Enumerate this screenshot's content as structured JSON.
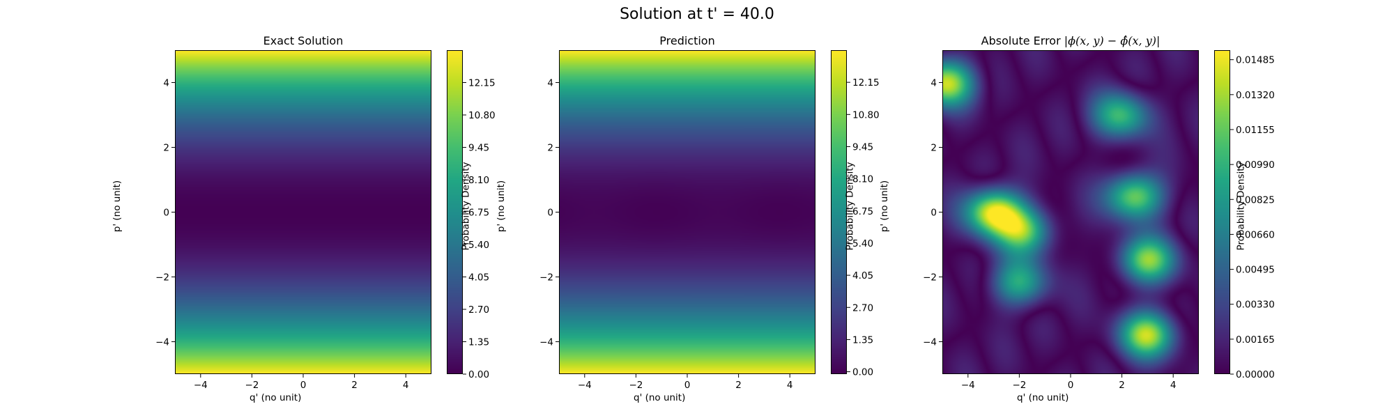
{
  "figure": {
    "suptitle": "Solution at t' = 40.0"
  },
  "chart_data": [
    {
      "type": "heatmap",
      "title": "Exact Solution",
      "xlabel": "q' (no unit)",
      "ylabel": "p' (no unit)",
      "xlim": [
        -5,
        5
      ],
      "ylim": [
        -5,
        5
      ],
      "xticks": [
        -4,
        -2,
        0,
        2,
        4
      ],
      "yticks": [
        -4,
        -2,
        0,
        2,
        4
      ],
      "colormap": "viridis",
      "colorbar": {
        "label": "Probability Density",
        "range": [
          0.0,
          13.5
        ],
        "ticks": [
          "0.00",
          "1.35",
          "2.70",
          "4.05",
          "5.40",
          "6.75",
          "8.10",
          "9.45",
          "10.80",
          "12.15"
        ]
      },
      "field": "density depends on p' only: ~0 at p'=0, rising symmetrically to ~13.5 at p'=±5; uniform along q'"
    },
    {
      "type": "heatmap",
      "title": "Prediction",
      "xlabel": "q' (no unit)",
      "ylabel": "p' (no unit)",
      "xlim": [
        -5,
        5
      ],
      "ylim": [
        -5,
        5
      ],
      "xticks": [
        -4,
        -2,
        0,
        2,
        4
      ],
      "yticks": [
        -4,
        -2,
        0,
        2,
        4
      ],
      "colormap": "viridis",
      "colorbar": {
        "label": "Probability Density",
        "range": [
          -0.1,
          13.5
        ],
        "ticks": [
          "0.00",
          "1.35",
          "2.70",
          "4.05",
          "5.40",
          "6.75",
          "8.10",
          "9.45",
          "10.80",
          "12.15"
        ]
      },
      "field": "nearly identical to exact solution; minimum ~0 along p'=0"
    },
    {
      "type": "heatmap",
      "title": "Absolute Error",
      "title_math": "|ϕ(x, y) − ϕ̂(x, y)|",
      "xlabel": "q' (no unit)",
      "ylabel": "p' (no unit)",
      "xlim": [
        -5,
        5
      ],
      "ylim": [
        -5,
        5
      ],
      "xticks": [
        -4,
        -2,
        0,
        2,
        4
      ],
      "yticks": [
        -4,
        -2,
        0,
        2,
        4
      ],
      "colormap": "viridis",
      "colorbar": {
        "label": "Probability Density",
        "range": [
          0.0,
          0.0153
        ],
        "ticks": [
          "0.00000",
          "0.00165",
          "0.00330",
          "0.00495",
          "0.00660",
          "0.00825",
          "0.00990",
          "0.01155",
          "0.01320",
          "0.01485"
        ]
      },
      "peaks": [
        {
          "q": -3.0,
          "p": 0.0,
          "value": 0.015
        },
        {
          "q": -1.8,
          "p": -0.6,
          "value": 0.0105
        },
        {
          "q": 2.5,
          "p": 0.5,
          "value": 0.0125
        },
        {
          "q": 3.0,
          "p": -3.8,
          "value": 0.013
        },
        {
          "q": 3.0,
          "p": -1.5,
          "value": 0.012
        },
        {
          "q": -4.9,
          "p": 4.0,
          "value": 0.0135
        },
        {
          "q": 2.0,
          "p": 3.0,
          "value": 0.01
        },
        {
          "q": -2.0,
          "p": -2.2,
          "value": 0.009
        }
      ]
    }
  ]
}
